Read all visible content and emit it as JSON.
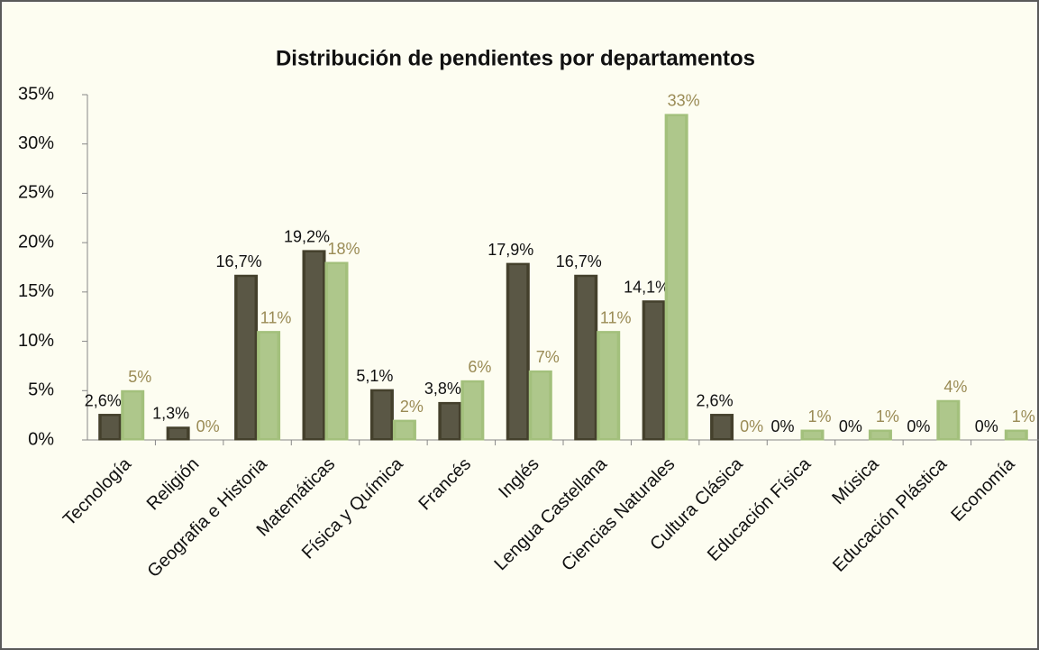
{
  "chart_data": {
    "type": "bar",
    "title": "Distribución de pendientes por departamentos",
    "categories": [
      "Tecnología",
      "Religión",
      "Geografia e Historia",
      "Matemáticas",
      "Física y Química",
      "Francés",
      "Inglés",
      "Lengua Castellana",
      "Ciencias Naturales",
      "Cultura Clásica",
      "Educación Física",
      "Música",
      "Educación Plástica",
      "Economía"
    ],
    "series": [
      {
        "color": "#4b4731",
        "label_color": "#111111",
        "values": [
          2.6,
          1.3,
          16.7,
          19.2,
          5.1,
          3.8,
          17.9,
          16.7,
          14.1,
          2.6,
          0,
          0,
          0,
          0
        ],
        "value_labels": [
          "2,6%",
          "1,3%",
          "16,7%",
          "19,2%",
          "5,1%",
          "3,8%",
          "17,9%",
          "16,7%",
          "14,1%",
          "2,6%",
          "0%",
          "0%",
          "0%",
          "0%"
        ]
      },
      {
        "color": "#b5d58a",
        "label_color": "#9a8b55",
        "values": [
          5,
          0,
          11,
          18,
          2,
          6,
          7,
          11,
          33,
          0,
          1,
          1,
          4,
          1
        ],
        "value_labels": [
          "5%",
          "0%",
          "11%",
          "18%",
          "2%",
          "6%",
          "7%",
          "11%",
          "33%",
          "0%",
          "1%",
          "1%",
          "4%",
          "1%"
        ]
      }
    ],
    "ylim": [
      0,
      35
    ],
    "yticks": [
      {
        "value": 0,
        "label": "0%"
      },
      {
        "value": 5,
        "label": "5%"
      },
      {
        "value": 10,
        "label": "10%"
      },
      {
        "value": 15,
        "label": "15%"
      },
      {
        "value": 20,
        "label": "20%"
      },
      {
        "value": 25,
        "label": "25%"
      },
      {
        "value": 30,
        "label": "30%"
      },
      {
        "value": 35,
        "label": "35%"
      }
    ],
    "grid": false
  }
}
